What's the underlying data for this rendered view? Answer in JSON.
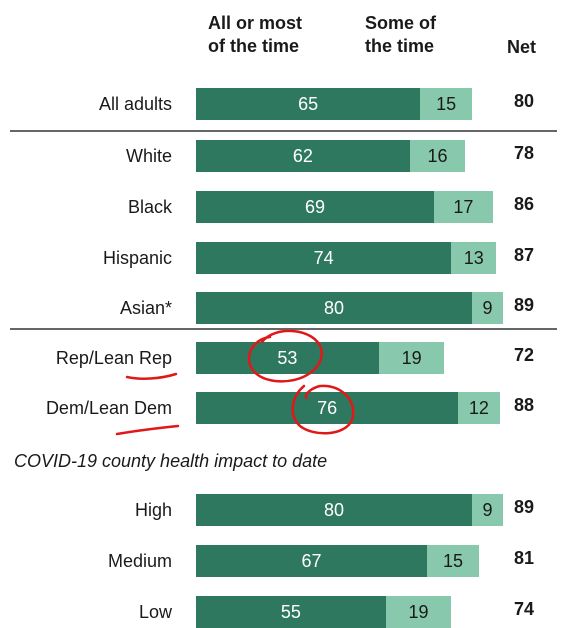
{
  "headers": {
    "all_or_most_line1": "All or most",
    "all_or_most_line2": "of the time",
    "some_line1": "Some of",
    "some_line2": "the time",
    "net": "Net"
  },
  "section_label": "COVID-19 county health impact to date",
  "chart_data": {
    "type": "bar",
    "orientation": "horizontal",
    "stacked": true,
    "categories": [
      "All adults",
      "White",
      "Black",
      "Hispanic",
      "Asian*",
      "Rep/Lean Rep",
      "Dem/Lean Dem",
      "High",
      "Medium",
      "Low"
    ],
    "series": [
      {
        "name": "All or most of the time",
        "values": [
          65,
          62,
          69,
          74,
          80,
          53,
          76,
          80,
          67,
          55
        ],
        "color": "#2e7860"
      },
      {
        "name": "Some of the time",
        "values": [
          15,
          16,
          17,
          13,
          9,
          19,
          12,
          9,
          15,
          19
        ],
        "color": "#88c8ac"
      }
    ],
    "net": [
      80,
      78,
      86,
      87,
      89,
      72,
      88,
      89,
      81,
      74
    ],
    "xlim": [
      0,
      100
    ],
    "grid": false,
    "legend": "top"
  }
}
